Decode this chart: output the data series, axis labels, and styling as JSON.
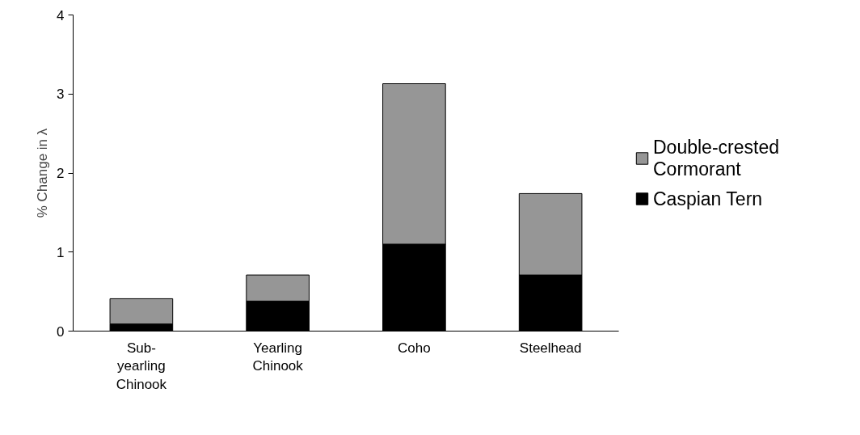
{
  "chart_data": {
    "type": "bar",
    "ylabel": "% Change in λ",
    "categories": [
      "Sub-yearling Chinook",
      "Yearling Chinook",
      "Coho",
      "Steelhead"
    ],
    "series": [
      {
        "name": "Caspian Tern",
        "color": "#000000",
        "values": [
          0.09,
          0.38,
          1.1,
          0.71
        ]
      },
      {
        "name": "Double-crested Cormorant",
        "color": "#969696",
        "values": [
          0.32,
          0.33,
          2.03,
          1.03
        ]
      }
    ],
    "stacked": true,
    "ylim": [
      0,
      4
    ],
    "yticks": [
      0,
      1,
      2,
      3,
      4
    ],
    "grid": false,
    "legend": "right"
  }
}
